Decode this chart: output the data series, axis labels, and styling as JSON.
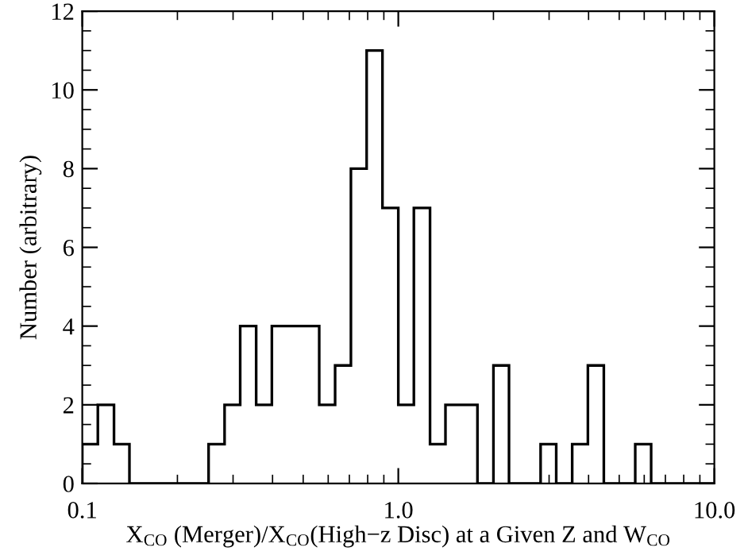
{
  "chart_data": {
    "type": "histogram",
    "xlabel": "X$_{CO}$ (Merger)/X$_{CO}$(High−z Disc) at a Given Z and W$_{CO}$",
    "ylabel": "Number (arbitrary)",
    "bins": [
      0.1,
      0.112,
      0.126,
      0.141,
      0.158,
      0.178,
      0.2,
      0.224,
      0.251,
      0.282,
      0.316,
      0.355,
      0.398,
      0.447,
      0.501,
      0.562,
      0.631,
      0.708,
      0.794,
      0.891,
      1.0,
      1.12,
      1.26,
      1.41,
      1.58,
      1.78,
      2.0,
      2.24,
      2.51,
      2.82,
      3.16,
      3.55,
      3.98,
      4.47,
      5.01,
      5.62,
      6.31,
      7.08,
      7.94,
      8.91,
      10.0
    ],
    "values": [
      1,
      2,
      1,
      0,
      0,
      0,
      0,
      0,
      1,
      2,
      4,
      2,
      4,
      4,
      4,
      2,
      3,
      8,
      11,
      7,
      2,
      7,
      1,
      2,
      2,
      0,
      3,
      0,
      0,
      1,
      0,
      1,
      3,
      0,
      0,
      1,
      0,
      0,
      0,
      0
    ],
    "color": "#000000",
    "log": "x",
    "xlim": [
      0.1,
      10
    ],
    "xticks": [
      {
        "value": 0.1,
        "label": "0.1"
      },
      {
        "value": 1,
        "label": "1.0"
      },
      {
        "value": 10,
        "label": "10.0"
      }
    ],
    "ylim": [
      0,
      12
    ],
    "yticks": [
      0,
      2,
      4,
      6,
      8,
      10,
      12
    ],
    "grid": false
  }
}
